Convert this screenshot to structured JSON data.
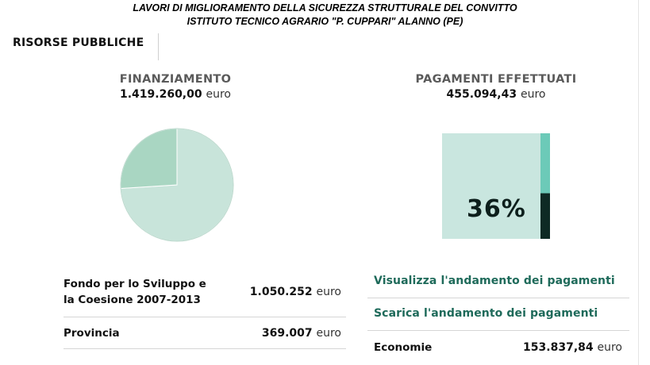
{
  "header": {
    "title_line1": "LAVORI DI MIGLIORAMENTO DELLA SICUREZZA STRUTTURALE DEL CONVITTO",
    "title_line2": "ISTITUTO TECNICO AGRARIO \"P. CUPPARI\"  ALANNO (PE)"
  },
  "section": {
    "label": "RISORSE PUBBLICHE"
  },
  "funding": {
    "title": "FINANZIAMENTO",
    "amount": "1.419.260,00",
    "unit": "euro",
    "chart_data": {
      "type": "pie",
      "categories": [
        "Fondo per lo Sviluppo e la Coesione 2007-2013",
        "Provincia"
      ],
      "values": [
        1050252,
        369007
      ],
      "colors": [
        "#c8e4da",
        "#a9d6c2"
      ]
    },
    "sources": [
      {
        "label_line1": "Fondo per lo Sviluppo e",
        "label_line2": "la Coesione 2007-2013",
        "value": "1.050.252",
        "unit": "euro"
      },
      {
        "label_line1": "Provincia",
        "label_line2": "",
        "value": "369.007",
        "unit": "euro"
      }
    ]
  },
  "payments": {
    "title": "PAGAMENTI EFFETTUATI",
    "amount": "455.094,43",
    "unit": "euro",
    "percent_label": "36%",
    "percent_value": 36,
    "colors": {
      "panel": "#c9e6df",
      "bar_top": "#6ccab8",
      "bar_bottom": "#0e2a24"
    },
    "links": [
      {
        "label": "Visualizza l'andamento dei pagamenti"
      },
      {
        "label": "Scarica l'andamento dei pagamenti"
      }
    ],
    "economies": {
      "label": "Economie",
      "value": "153.837,84",
      "unit": "euro"
    }
  }
}
